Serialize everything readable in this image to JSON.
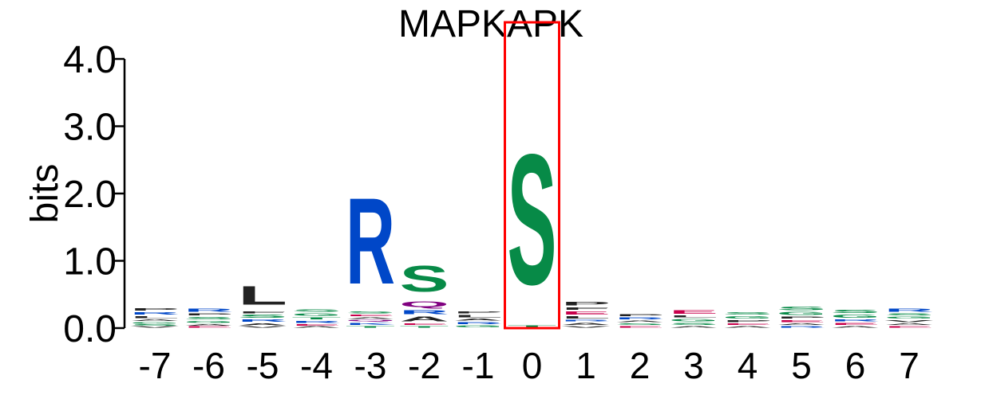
{
  "chart_data": {
    "type": "sequence-logo",
    "title": "MAPKAPK",
    "ylabel": "bits",
    "xlabel": "",
    "ylim": [
      0,
      4
    ],
    "yticks": [
      "0.0",
      "1.0",
      "2.0",
      "3.0",
      "4.0"
    ],
    "positions": [
      "-7",
      "-6",
      "-5",
      "-4",
      "-3",
      "-2",
      "-1",
      "0",
      "1",
      "2",
      "3",
      "4",
      "5",
      "6",
      "7"
    ],
    "highlight_position": "0",
    "highlight_color": "#ff0000",
    "colors": {
      "basic": "#0047c8",
      "polar": "#078a47",
      "hydrophobic": "#222222",
      "amide": "#800080",
      "acidic": "#c8004b"
    },
    "columns": [
      {
        "position": "-7",
        "letters": [
          {
            "letter": "V",
            "bits": 0.03,
            "color": "#222222"
          },
          {
            "letter": "S",
            "bits": 0.03,
            "color": "#078a47"
          },
          {
            "letter": "G",
            "bits": 0.04,
            "color": "#078a47"
          },
          {
            "letter": "A",
            "bits": 0.04,
            "color": "#222222"
          },
          {
            "letter": "L",
            "bits": 0.05,
            "color": "#222222"
          },
          {
            "letter": "R",
            "bits": 0.06,
            "color": "#0047c8"
          },
          {
            "letter": "P",
            "bits": 0.06,
            "color": "#222222"
          }
        ]
      },
      {
        "position": "-6",
        "letters": [
          {
            "letter": "E",
            "bits": 0.03,
            "color": "#c8004b"
          },
          {
            "letter": "A",
            "bits": 0.04,
            "color": "#222222"
          },
          {
            "letter": "G",
            "bits": 0.05,
            "color": "#078a47"
          },
          {
            "letter": "S",
            "bits": 0.06,
            "color": "#078a47"
          },
          {
            "letter": "P",
            "bits": 0.05,
            "color": "#222222"
          },
          {
            "letter": "R",
            "bits": 0.07,
            "color": "#0047c8"
          }
        ]
      },
      {
        "position": "-5",
        "letters": [
          {
            "letter": "V",
            "bits": 0.03,
            "color": "#222222"
          },
          {
            "letter": "A",
            "bits": 0.05,
            "color": "#222222"
          },
          {
            "letter": "R",
            "bits": 0.06,
            "color": "#0047c8"
          },
          {
            "letter": "S",
            "bits": 0.07,
            "color": "#078a47"
          },
          {
            "letter": "F",
            "bits": 0.05,
            "color": "#222222"
          },
          {
            "letter": "L",
            "bits": 0.44,
            "color": "#222222"
          }
        ]
      },
      {
        "position": "-4",
        "letters": [
          {
            "letter": "A",
            "bits": 0.03,
            "color": "#222222"
          },
          {
            "letter": "E",
            "bits": 0.04,
            "color": "#c8004b"
          },
          {
            "letter": "R",
            "bits": 0.05,
            "color": "#0047c8"
          },
          {
            "letter": "T",
            "bits": 0.05,
            "color": "#078a47"
          },
          {
            "letter": "G",
            "bits": 0.06,
            "color": "#078a47"
          },
          {
            "letter": "S",
            "bits": 0.06,
            "color": "#078a47"
          }
        ]
      },
      {
        "position": "-3",
        "letters": [
          {
            "letter": "T",
            "bits": 0.04,
            "color": "#078a47"
          },
          {
            "letter": "K",
            "bits": 0.05,
            "color": "#0047c8"
          },
          {
            "letter": "Q",
            "bits": 0.04,
            "color": "#800080"
          },
          {
            "letter": "A",
            "bits": 0.04,
            "color": "#222222"
          },
          {
            "letter": "E",
            "bits": 0.04,
            "color": "#c8004b"
          },
          {
            "letter": "S",
            "bits": 0.05,
            "color": "#078a47"
          },
          {
            "letter": "R",
            "bits": 2.05,
            "color": "#0047c8"
          }
        ]
      },
      {
        "position": "-2",
        "letters": [
          {
            "letter": "T",
            "bits": 0.04,
            "color": "#078a47"
          },
          {
            "letter": "E",
            "bits": 0.04,
            "color": "#c8004b"
          },
          {
            "letter": "A",
            "bits": 0.11,
            "color": "#222222"
          },
          {
            "letter": "R",
            "bits": 0.1,
            "color": "#0047c8"
          },
          {
            "letter": "Q",
            "bits": 0.13,
            "color": "#800080"
          },
          {
            "letter": "S",
            "bits": 0.62,
            "color": "#078a47"
          }
        ]
      },
      {
        "position": "-1",
        "letters": [
          {
            "letter": "G",
            "bits": 0.05,
            "color": "#078a47"
          },
          {
            "letter": "R",
            "bits": 0.05,
            "color": "#0047c8"
          },
          {
            "letter": "A",
            "bits": 0.05,
            "color": "#222222"
          },
          {
            "letter": "L",
            "bits": 0.06,
            "color": "#222222"
          },
          {
            "letter": "P",
            "bits": 0.05,
            "color": "#222222"
          }
        ]
      },
      {
        "position": "0",
        "letters": [
          {
            "letter": "T",
            "bits": 0.05,
            "color": "#078a47"
          },
          {
            "letter": "S",
            "bits": 3.1,
            "color": "#078a47"
          }
        ]
      },
      {
        "position": "1",
        "letters": [
          {
            "letter": "V",
            "bits": 0.04,
            "color": "#222222"
          },
          {
            "letter": "A",
            "bits": 0.05,
            "color": "#222222"
          },
          {
            "letter": "R",
            "bits": 0.04,
            "color": "#0047c8"
          },
          {
            "letter": "L",
            "bits": 0.06,
            "color": "#222222"
          },
          {
            "letter": "E",
            "bits": 0.07,
            "color": "#c8004b"
          },
          {
            "letter": "F",
            "bits": 0.06,
            "color": "#222222"
          },
          {
            "letter": "P",
            "bits": 0.08,
            "color": "#222222"
          }
        ]
      },
      {
        "position": "2",
        "letters": [
          {
            "letter": "E",
            "bits": 0.04,
            "color": "#c8004b"
          },
          {
            "letter": "S",
            "bits": 0.04,
            "color": "#078a47"
          },
          {
            "letter": "A",
            "bits": 0.04,
            "color": "#222222"
          },
          {
            "letter": "R",
            "bits": 0.05,
            "color": "#0047c8"
          },
          {
            "letter": "P",
            "bits": 0.05,
            "color": "#222222"
          }
        ]
      },
      {
        "position": "3",
        "letters": [
          {
            "letter": "A",
            "bits": 0.04,
            "color": "#222222"
          },
          {
            "letter": "S",
            "bits": 0.05,
            "color": "#078a47"
          },
          {
            "letter": "G",
            "bits": 0.06,
            "color": "#078a47"
          },
          {
            "letter": "L",
            "bits": 0.05,
            "color": "#222222"
          },
          {
            "letter": "E",
            "bits": 0.08,
            "color": "#c8004b"
          }
        ]
      },
      {
        "position": "4",
        "letters": [
          {
            "letter": "A",
            "bits": 0.04,
            "color": "#222222"
          },
          {
            "letter": "E",
            "bits": 0.04,
            "color": "#c8004b"
          },
          {
            "letter": "P",
            "bits": 0.05,
            "color": "#222222"
          },
          {
            "letter": "G",
            "bits": 0.06,
            "color": "#078a47"
          },
          {
            "letter": "S",
            "bits": 0.06,
            "color": "#078a47"
          }
        ]
      },
      {
        "position": "5",
        "letters": [
          {
            "letter": "R",
            "bits": 0.04,
            "color": "#0047c8"
          },
          {
            "letter": "A",
            "bits": 0.04,
            "color": "#222222"
          },
          {
            "letter": "E",
            "bits": 0.05,
            "color": "#c8004b"
          },
          {
            "letter": "P",
            "bits": 0.05,
            "color": "#222222"
          },
          {
            "letter": "G",
            "bits": 0.07,
            "color": "#078a47"
          },
          {
            "letter": "S",
            "bits": 0.08,
            "color": "#078a47"
          }
        ]
      },
      {
        "position": "6",
        "letters": [
          {
            "letter": "A",
            "bits": 0.04,
            "color": "#222222"
          },
          {
            "letter": "E",
            "bits": 0.05,
            "color": "#c8004b"
          },
          {
            "letter": "R",
            "bits": 0.05,
            "color": "#0047c8"
          },
          {
            "letter": "G",
            "bits": 0.07,
            "color": "#078a47"
          },
          {
            "letter": "S",
            "bits": 0.07,
            "color": "#078a47"
          }
        ]
      },
      {
        "position": "7",
        "letters": [
          {
            "letter": "E",
            "bits": 0.04,
            "color": "#c8004b"
          },
          {
            "letter": "A",
            "bits": 0.04,
            "color": "#222222"
          },
          {
            "letter": "V",
            "bits": 0.05,
            "color": "#222222"
          },
          {
            "letter": "G",
            "bits": 0.05,
            "color": "#078a47"
          },
          {
            "letter": "S",
            "bits": 0.05,
            "color": "#078a47"
          },
          {
            "letter": "R",
            "bits": 0.07,
            "color": "#0047c8"
          }
        ]
      }
    ]
  }
}
